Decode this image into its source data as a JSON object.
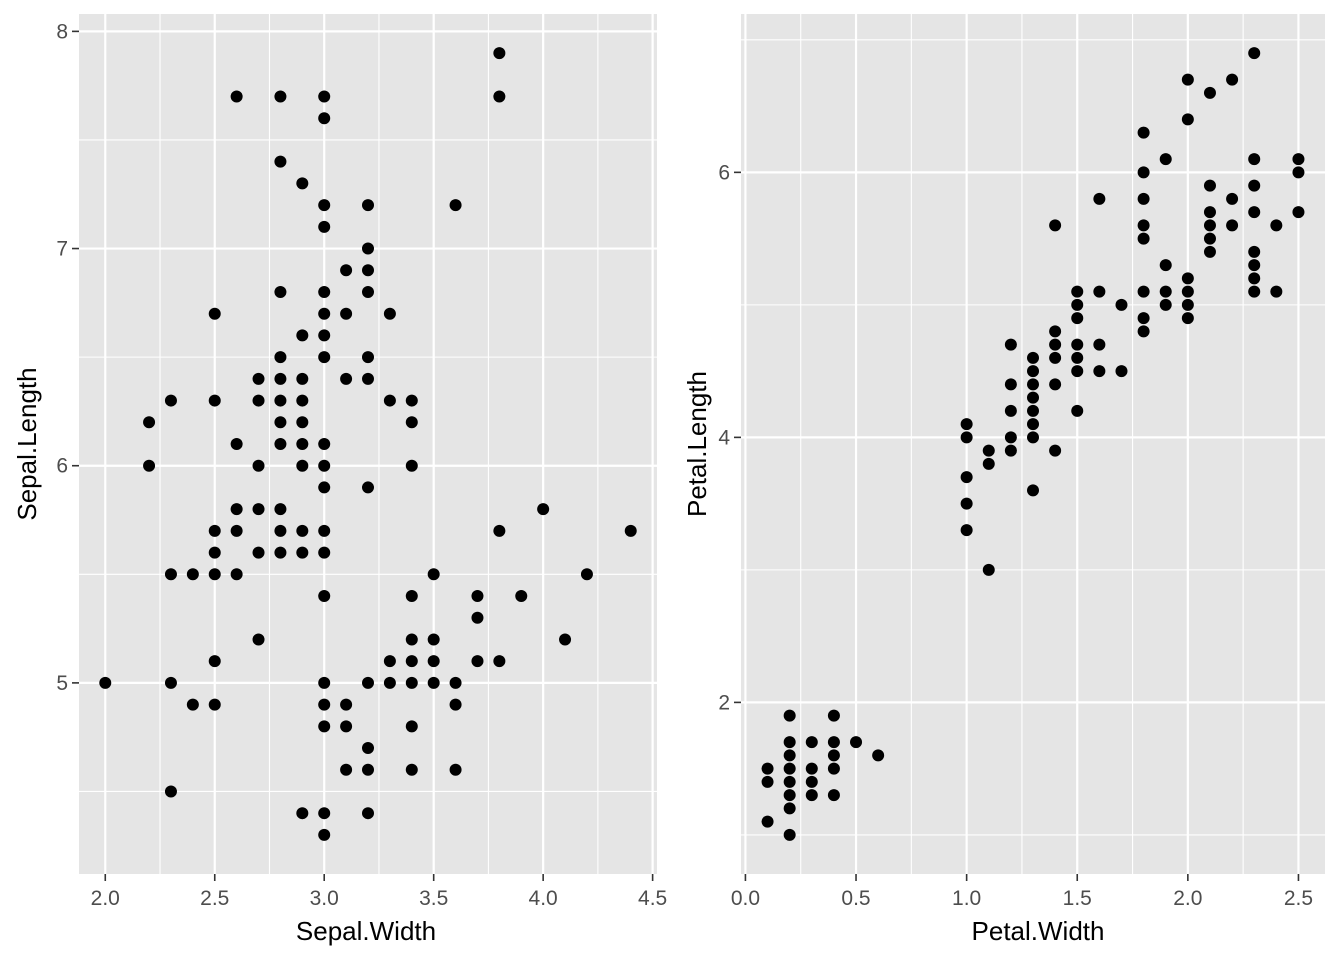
{
  "chart_data": [
    {
      "type": "scatter",
      "xlabel": "Sepal.Width",
      "ylabel": "Sepal.Length",
      "xlim": [
        1.88,
        4.52
      ],
      "ylim": [
        4.12,
        8.08
      ],
      "xticks": [
        2.0,
        2.5,
        3.0,
        3.5,
        4.0,
        4.5
      ],
      "xtick_labels": [
        "2.0",
        "2.5",
        "3.0",
        "3.5",
        "4.0",
        "4.5"
      ],
      "yticks": [
        5,
        6,
        7,
        8
      ],
      "ytick_labels": [
        "5",
        "6",
        "7",
        "8"
      ],
      "xminor": [
        2.25,
        2.75,
        3.25,
        3.75,
        4.25
      ],
      "yminor": [
        4.5,
        5.5,
        6.5,
        7.5
      ],
      "grid": true,
      "points": [
        [
          2.0,
          5.0
        ],
        [
          2.2,
          6.2
        ],
        [
          2.2,
          6.0
        ],
        [
          2.3,
          6.3
        ],
        [
          2.3,
          5.5
        ],
        [
          2.3,
          5.0
        ],
        [
          2.3,
          4.5
        ],
        [
          2.4,
          5.5
        ],
        [
          2.4,
          4.9
        ],
        [
          2.5,
          6.7
        ],
        [
          2.5,
          6.3
        ],
        [
          2.5,
          5.7
        ],
        [
          2.5,
          5.6
        ],
        [
          2.5,
          5.5
        ],
        [
          2.5,
          5.1
        ],
        [
          2.5,
          4.9
        ],
        [
          2.6,
          7.7
        ],
        [
          2.6,
          6.1
        ],
        [
          2.6,
          5.8
        ],
        [
          2.6,
          5.7
        ],
        [
          2.6,
          5.5
        ],
        [
          2.7,
          6.4
        ],
        [
          2.7,
          6.3
        ],
        [
          2.7,
          6.0
        ],
        [
          2.7,
          5.8
        ],
        [
          2.7,
          5.6
        ],
        [
          2.7,
          5.2
        ],
        [
          2.8,
          7.7
        ],
        [
          2.8,
          7.4
        ],
        [
          2.8,
          6.8
        ],
        [
          2.8,
          6.5
        ],
        [
          2.8,
          6.4
        ],
        [
          2.8,
          6.3
        ],
        [
          2.8,
          6.2
        ],
        [
          2.8,
          6.1
        ],
        [
          2.8,
          5.8
        ],
        [
          2.8,
          5.7
        ],
        [
          2.8,
          5.6
        ],
        [
          2.9,
          7.3
        ],
        [
          2.9,
          6.6
        ],
        [
          2.9,
          6.4
        ],
        [
          2.9,
          6.3
        ],
        [
          2.9,
          6.2
        ],
        [
          2.9,
          6.1
        ],
        [
          2.9,
          6.0
        ],
        [
          2.9,
          5.7
        ],
        [
          2.9,
          5.6
        ],
        [
          2.9,
          4.4
        ],
        [
          3.0,
          7.7
        ],
        [
          3.0,
          7.6
        ],
        [
          3.0,
          7.2
        ],
        [
          3.0,
          7.1
        ],
        [
          3.0,
          6.8
        ],
        [
          3.0,
          6.7
        ],
        [
          3.0,
          6.6
        ],
        [
          3.0,
          6.5
        ],
        [
          3.0,
          6.1
        ],
        [
          3.0,
          6.0
        ],
        [
          3.0,
          5.9
        ],
        [
          3.0,
          5.7
        ],
        [
          3.0,
          5.6
        ],
        [
          3.0,
          5.4
        ],
        [
          3.0,
          5.0
        ],
        [
          3.0,
          4.9
        ],
        [
          3.0,
          4.8
        ],
        [
          3.0,
          4.4
        ],
        [
          3.0,
          4.3
        ],
        [
          3.1,
          6.9
        ],
        [
          3.1,
          6.7
        ],
        [
          3.1,
          6.4
        ],
        [
          3.1,
          4.9
        ],
        [
          3.1,
          4.8
        ],
        [
          3.1,
          4.6
        ],
        [
          3.2,
          7.2
        ],
        [
          3.2,
          7.0
        ],
        [
          3.2,
          6.9
        ],
        [
          3.2,
          6.8
        ],
        [
          3.2,
          6.5
        ],
        [
          3.2,
          6.4
        ],
        [
          3.2,
          5.9
        ],
        [
          3.2,
          5.0
        ],
        [
          3.2,
          4.7
        ],
        [
          3.2,
          4.6
        ],
        [
          3.2,
          4.4
        ],
        [
          3.3,
          6.7
        ],
        [
          3.3,
          6.3
        ],
        [
          3.3,
          5.1
        ],
        [
          3.3,
          5.0
        ],
        [
          3.4,
          6.3
        ],
        [
          3.4,
          6.2
        ],
        [
          3.4,
          6.0
        ],
        [
          3.4,
          5.4
        ],
        [
          3.4,
          5.2
        ],
        [
          3.4,
          5.1
        ],
        [
          3.4,
          5.0
        ],
        [
          3.4,
          4.8
        ],
        [
          3.4,
          4.6
        ],
        [
          3.5,
          5.5
        ],
        [
          3.5,
          5.2
        ],
        [
          3.5,
          5.1
        ],
        [
          3.5,
          5.0
        ],
        [
          3.6,
          7.2
        ],
        [
          3.6,
          5.0
        ],
        [
          3.6,
          4.9
        ],
        [
          3.6,
          4.6
        ],
        [
          3.7,
          5.4
        ],
        [
          3.7,
          5.3
        ],
        [
          3.7,
          5.1
        ],
        [
          3.8,
          7.9
        ],
        [
          3.8,
          7.7
        ],
        [
          3.8,
          5.7
        ],
        [
          3.8,
          5.1
        ],
        [
          3.9,
          5.4
        ],
        [
          4.0,
          5.8
        ],
        [
          4.1,
          5.2
        ],
        [
          4.2,
          5.5
        ],
        [
          4.4,
          5.7
        ]
      ]
    },
    {
      "type": "scatter",
      "xlabel": "Petal.Width",
      "ylabel": "Petal.Length",
      "xlim": [
        -0.02,
        2.62
      ],
      "ylim": [
        0.705,
        7.195
      ],
      "xticks": [
        0.0,
        0.5,
        1.0,
        1.5,
        2.0,
        2.5
      ],
      "xtick_labels": [
        "0.0",
        "0.5",
        "1.0",
        "1.5",
        "2.0",
        "2.5"
      ],
      "yticks": [
        2,
        4,
        6
      ],
      "ytick_labels": [
        "2",
        "4",
        "6"
      ],
      "xminor": [
        0.25,
        0.75,
        1.25,
        1.75,
        2.25
      ],
      "yminor": [
        1,
        3,
        5,
        7
      ],
      "grid": true,
      "points": [
        [
          0.1,
          1.5
        ],
        [
          0.1,
          1.4
        ],
        [
          0.1,
          1.1
        ],
        [
          0.2,
          1.9
        ],
        [
          0.2,
          1.7
        ],
        [
          0.2,
          1.6
        ],
        [
          0.2,
          1.5
        ],
        [
          0.2,
          1.4
        ],
        [
          0.2,
          1.3
        ],
        [
          0.2,
          1.2
        ],
        [
          0.2,
          1.0
        ],
        [
          0.3,
          1.7
        ],
        [
          0.3,
          1.5
        ],
        [
          0.3,
          1.4
        ],
        [
          0.3,
          1.3
        ],
        [
          0.4,
          1.9
        ],
        [
          0.4,
          1.7
        ],
        [
          0.4,
          1.6
        ],
        [
          0.4,
          1.5
        ],
        [
          0.4,
          1.3
        ],
        [
          0.5,
          1.7
        ],
        [
          0.6,
          1.6
        ],
        [
          1.0,
          4.1
        ],
        [
          1.0,
          4.0
        ],
        [
          1.0,
          3.7
        ],
        [
          1.0,
          3.5
        ],
        [
          1.0,
          3.3
        ],
        [
          1.1,
          3.9
        ],
        [
          1.1,
          3.8
        ],
        [
          1.1,
          3.0
        ],
        [
          1.2,
          4.7
        ],
        [
          1.2,
          4.4
        ],
        [
          1.2,
          4.2
        ],
        [
          1.2,
          4.0
        ],
        [
          1.2,
          3.9
        ],
        [
          1.3,
          4.6
        ],
        [
          1.3,
          4.5
        ],
        [
          1.3,
          4.4
        ],
        [
          1.3,
          4.3
        ],
        [
          1.3,
          4.2
        ],
        [
          1.3,
          4.1
        ],
        [
          1.3,
          4.0
        ],
        [
          1.3,
          3.6
        ],
        [
          1.4,
          5.6
        ],
        [
          1.4,
          4.8
        ],
        [
          1.4,
          4.7
        ],
        [
          1.4,
          4.6
        ],
        [
          1.4,
          4.4
        ],
        [
          1.4,
          3.9
        ],
        [
          1.5,
          5.1
        ],
        [
          1.5,
          5.0
        ],
        [
          1.5,
          4.9
        ],
        [
          1.5,
          4.7
        ],
        [
          1.5,
          4.6
        ],
        [
          1.5,
          4.5
        ],
        [
          1.5,
          4.2
        ],
        [
          1.6,
          5.8
        ],
        [
          1.6,
          5.1
        ],
        [
          1.6,
          4.7
        ],
        [
          1.6,
          4.5
        ],
        [
          1.7,
          5.0
        ],
        [
          1.7,
          4.5
        ],
        [
          1.8,
          6.3
        ],
        [
          1.8,
          6.0
        ],
        [
          1.8,
          5.8
        ],
        [
          1.8,
          5.6
        ],
        [
          1.8,
          5.5
        ],
        [
          1.8,
          5.1
        ],
        [
          1.8,
          4.9
        ],
        [
          1.8,
          4.8
        ],
        [
          1.9,
          6.1
        ],
        [
          1.9,
          5.3
        ],
        [
          1.9,
          5.1
        ],
        [
          1.9,
          5.0
        ],
        [
          2.0,
          6.7
        ],
        [
          2.0,
          6.4
        ],
        [
          2.0,
          5.2
        ],
        [
          2.0,
          5.1
        ],
        [
          2.0,
          5.0
        ],
        [
          2.0,
          4.9
        ],
        [
          2.1,
          6.6
        ],
        [
          2.1,
          5.9
        ],
        [
          2.1,
          5.7
        ],
        [
          2.1,
          5.6
        ],
        [
          2.1,
          5.5
        ],
        [
          2.1,
          5.4
        ],
        [
          2.2,
          6.7
        ],
        [
          2.2,
          5.8
        ],
        [
          2.2,
          5.6
        ],
        [
          2.3,
          6.9
        ],
        [
          2.3,
          6.1
        ],
        [
          2.3,
          5.9
        ],
        [
          2.3,
          5.7
        ],
        [
          2.3,
          5.4
        ],
        [
          2.3,
          5.3
        ],
        [
          2.3,
          5.2
        ],
        [
          2.3,
          5.1
        ],
        [
          2.4,
          5.6
        ],
        [
          2.4,
          5.1
        ],
        [
          2.5,
          6.1
        ],
        [
          2.5,
          6.0
        ],
        [
          2.5,
          5.7
        ]
      ]
    }
  ]
}
